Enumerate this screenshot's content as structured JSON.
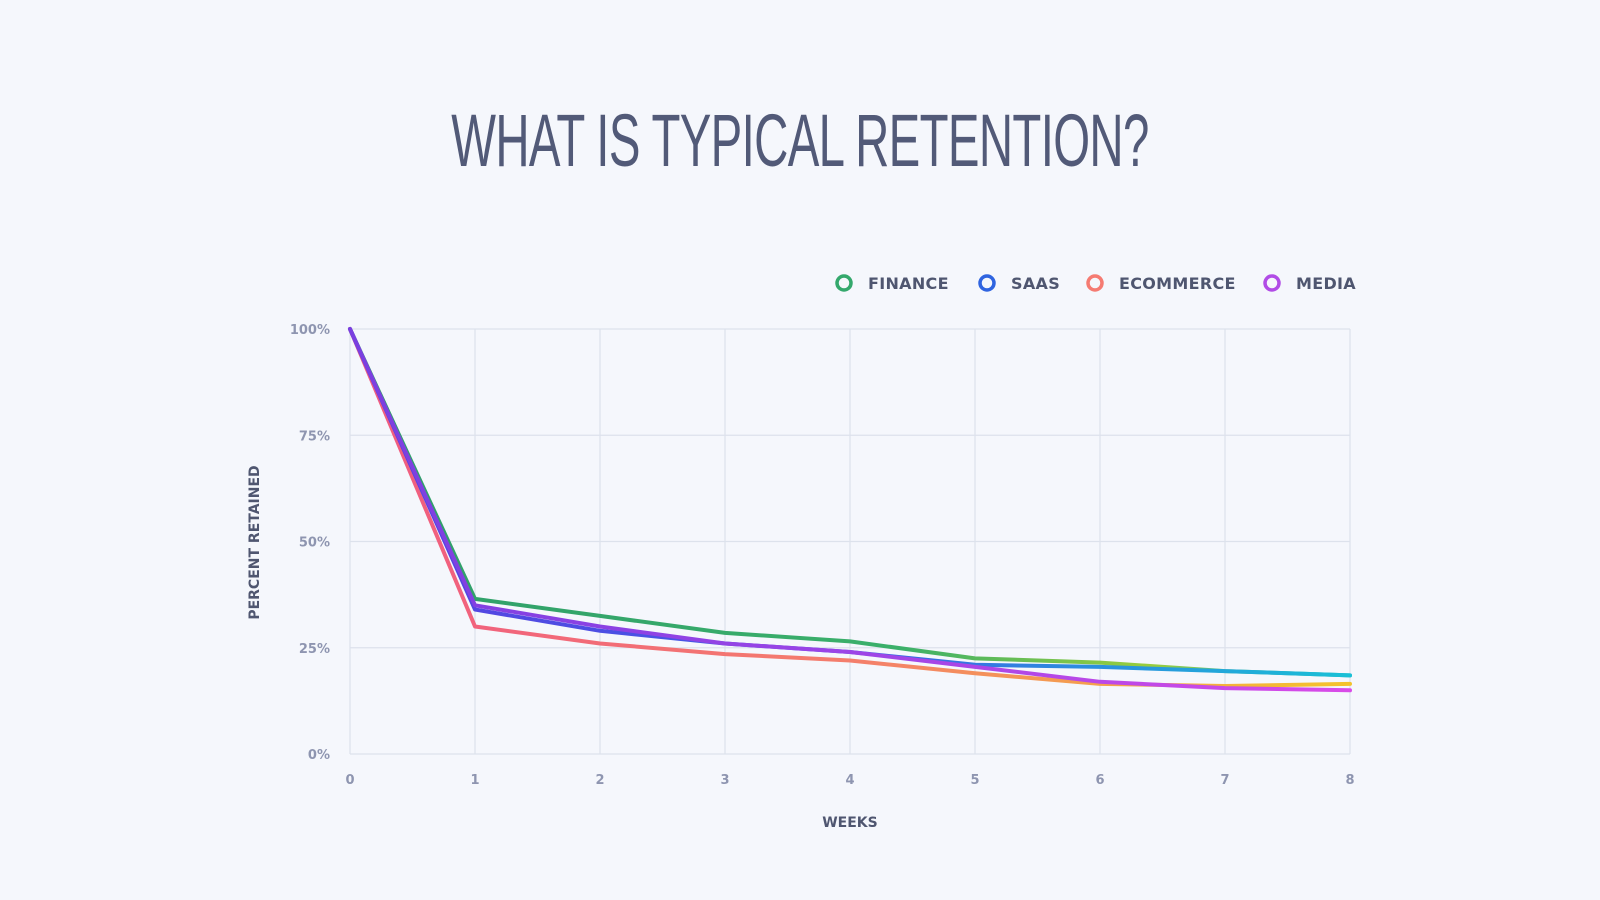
{
  "title": "WHAT IS TYPICAL RETENTION?",
  "chart_data": {
    "type": "line",
    "title": "WHAT IS TYPICAL RETENTION?",
    "xlabel": "WEEKS",
    "ylabel": "PERCENT RETAINED",
    "x": [
      0,
      1,
      2,
      3,
      4,
      5,
      6,
      7,
      8
    ],
    "x_tick_labels": [
      "0",
      "1",
      "2",
      "3",
      "4",
      "5",
      "6",
      "7",
      "8"
    ],
    "y_tick_values": [
      0,
      25,
      50,
      75,
      100
    ],
    "y_tick_labels": [
      "0%",
      "25%",
      "50%",
      "75%",
      "100%"
    ],
    "xlim": [
      0,
      8
    ],
    "ylim": [
      0,
      100
    ],
    "grid": true,
    "legend_position": "top-right",
    "series": [
      {
        "name": "FINANCE",
        "color": "#34a86c",
        "values": [
          100,
          36.5,
          32.5,
          28.5,
          26.5,
          22.5,
          21.5,
          19.5,
          18.5
        ]
      },
      {
        "name": "SAAS",
        "color": "#2f64e0",
        "values": [
          100,
          34,
          29,
          26,
          24,
          21,
          20.5,
          19.5,
          18.5
        ]
      },
      {
        "name": "ECOMMERCE",
        "color": "#f57b72",
        "values": [
          100,
          30,
          26,
          23.5,
          22,
          19,
          16.5,
          16,
          16.5
        ]
      },
      {
        "name": "MEDIA",
        "color": "#b14ce6",
        "values": [
          100,
          35,
          30,
          26,
          24,
          20.5,
          17,
          15.5,
          15
        ]
      }
    ]
  }
}
